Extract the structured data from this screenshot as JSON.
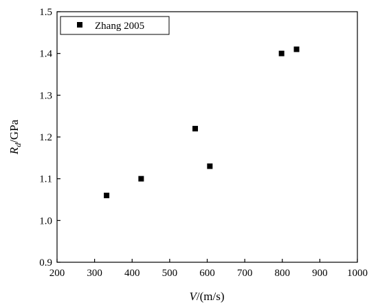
{
  "chart_data": {
    "type": "scatter",
    "title": "",
    "xlabel": {
      "italic": "V",
      "rest": "/(m/s)"
    },
    "ylabel": {
      "italic": "R",
      "sub": "d",
      "rest": "/GPa"
    },
    "xlim": [
      200,
      1000
    ],
    "ylim": [
      0.9,
      1.5
    ],
    "xticks": [
      200,
      300,
      400,
      500,
      600,
      700,
      800,
      900,
      1000
    ],
    "yticks": [
      0.9,
      1.0,
      1.1,
      1.2,
      1.3,
      1.4,
      1.5
    ],
    "grid": false,
    "legend_position": "top-left",
    "marker_color": "#000000",
    "series": [
      {
        "name": "Zhang 2005",
        "marker": "square",
        "points": [
          {
            "x": 332,
            "y": 1.06
          },
          {
            "x": 424,
            "y": 1.1
          },
          {
            "x": 568,
            "y": 1.22
          },
          {
            "x": 607,
            "y": 1.13
          },
          {
            "x": 798,
            "y": 1.4
          },
          {
            "x": 838,
            "y": 1.41
          }
        ]
      }
    ]
  }
}
